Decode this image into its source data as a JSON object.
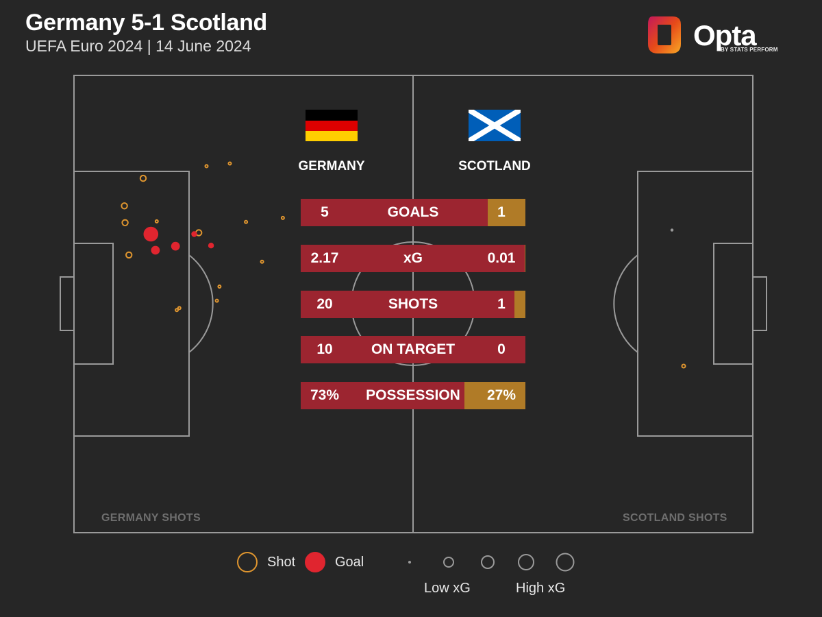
{
  "header": {
    "title": "Germany 5-1 Scotland",
    "subtitle": "UEFA Euro 2024 | 14 June 2024"
  },
  "logo": {
    "word": "Opta",
    "sub": "BY STATS PERFORM"
  },
  "teams": {
    "home": {
      "name": "GERMANY",
      "flag_colors": [
        "#000000",
        "#dd0000",
        "#ffce00"
      ]
    },
    "away": {
      "name": "SCOTLAND",
      "flag_colors": [
        "#005eb8",
        "#ffffff"
      ]
    }
  },
  "colors": {
    "background": "#262626",
    "pitch_lines": "#9a9a9a",
    "shot": "#e0962f",
    "goal": "#e0252f",
    "home_bar": "#9c2530",
    "away_bar": "#b07b27"
  },
  "stats": [
    {
      "label": "GOALS",
      "home": "5",
      "away": "1",
      "away_share": 0.1667
    },
    {
      "label": "xG",
      "home": "2.17",
      "away": "0.01",
      "away_share": 0.0046
    },
    {
      "label": "SHOTS",
      "home": "20",
      "away": "1",
      "away_share": 0.0476
    },
    {
      "label": "ON TARGET",
      "home": "10",
      "away": "0",
      "away_share": 0
    },
    {
      "label": "POSSESSION",
      "home": "73%",
      "away": "27%",
      "away_share": 0.27
    }
  ],
  "labels": {
    "home_shots": "GERMANY SHOTS",
    "away_shots": "SCOTLAND SHOTS"
  },
  "legend": {
    "shot": "Shot",
    "goal": "Goal",
    "low_xg": "Low xG",
    "high_xg": "High xG"
  },
  "chart_data": {
    "type": "scatter",
    "title": "Germany 5-1 Scotland",
    "subtitle": "UEFA Euro 2024 | 14 June 2024",
    "pitch_length_m": 105,
    "pitch_width_m": 68,
    "coordinate_note_hidden": false,
    "series": [
      {
        "name": "Germany",
        "points": [
          {
            "x": 10.7,
            "y": 15.3,
            "result": "shot",
            "size": 2
          },
          {
            "x": 20.5,
            "y": 13.5,
            "result": "shot",
            "size": 1
          },
          {
            "x": 24.1,
            "y": 13.1,
            "result": "shot",
            "size": 1
          },
          {
            "x": 7.8,
            "y": 19.4,
            "result": "shot",
            "size": 2
          },
          {
            "x": 7.9,
            "y": 21.9,
            "result": "shot",
            "size": 2
          },
          {
            "x": 12.8,
            "y": 21.7,
            "result": "shot",
            "size": 1
          },
          {
            "x": 19.3,
            "y": 23.4,
            "result": "shot",
            "size": 2
          },
          {
            "x": 26.6,
            "y": 21.8,
            "result": "shot",
            "size": 1
          },
          {
            "x": 32.3,
            "y": 21.2,
            "result": "shot",
            "size": 1
          },
          {
            "x": 8.5,
            "y": 26.7,
            "result": "shot",
            "size": 2
          },
          {
            "x": 29.1,
            "y": 27.7,
            "result": "shot",
            "size": 1
          },
          {
            "x": 22.5,
            "y": 31.4,
            "result": "shot",
            "size": 1
          },
          {
            "x": 16.3,
            "y": 34.6,
            "result": "shot",
            "size": 1
          },
          {
            "x": 15.9,
            "y": 34.9,
            "result": "shot",
            "size": 1
          },
          {
            "x": 22.1,
            "y": 33.5,
            "result": "shot",
            "size": 1
          },
          {
            "x": 11.9,
            "y": 23.6,
            "result": "goal",
            "size": 5
          },
          {
            "x": 12.6,
            "y": 26.0,
            "result": "goal",
            "size": 3
          },
          {
            "x": 15.7,
            "y": 25.4,
            "result": "goal",
            "size": 3
          },
          {
            "x": 18.6,
            "y": 23.6,
            "result": "goal",
            "size": 2
          },
          {
            "x": 21.2,
            "y": 25.3,
            "result": "goal",
            "size": 2
          }
        ]
      },
      {
        "name": "Scotland",
        "points": [
          {
            "x": 12.5,
            "y": 23.0,
            "result": "shot",
            "size": 1
          }
        ]
      }
    ],
    "extra_goal_note": "",
    "legend": [
      "Shot",
      "Goal",
      "Low xG",
      "High xG"
    ]
  }
}
